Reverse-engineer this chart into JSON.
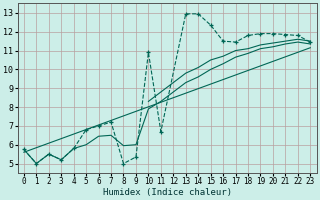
{
  "xlabel": "Humidex (Indice chaleur)",
  "bg_color": "#cceee8",
  "grid_color_major": "#b8a0a0",
  "grid_color_minor": "#d4b8b8",
  "line_color": "#006655",
  "xlim": [
    -0.5,
    23.5
  ],
  "ylim": [
    4.5,
    13.5
  ],
  "xticks": [
    0,
    1,
    2,
    3,
    4,
    5,
    6,
    7,
    8,
    9,
    10,
    11,
    12,
    13,
    14,
    15,
    16,
    17,
    18,
    19,
    20,
    21,
    22,
    23
  ],
  "yticks": [
    5,
    6,
    7,
    8,
    9,
    10,
    11,
    12,
    13
  ],
  "curve_main_x": [
    0,
    1,
    2,
    3,
    4,
    5,
    6,
    7,
    8,
    9,
    10,
    11,
    13,
    14,
    15,
    16,
    17,
    18,
    19,
    20,
    21,
    22,
    23
  ],
  "curve_main_y": [
    5.75,
    5.0,
    5.5,
    5.2,
    5.8,
    6.8,
    7.0,
    7.2,
    5.0,
    5.35,
    10.9,
    6.7,
    12.95,
    12.95,
    12.35,
    11.5,
    11.45,
    11.8,
    11.9,
    11.9,
    11.85,
    11.8,
    11.45
  ],
  "curve_upper_x": [
    10,
    11,
    13,
    14,
    15,
    16,
    17,
    18,
    19,
    20,
    21,
    22,
    23
  ],
  "curve_upper_y": [
    8.3,
    8.8,
    9.8,
    10.1,
    10.5,
    10.7,
    11.0,
    11.1,
    11.3,
    11.4,
    11.5,
    11.6,
    11.5
  ],
  "curve_lower_x": [
    0,
    1,
    2,
    3,
    4,
    5,
    6,
    7,
    8,
    9,
    10,
    11,
    13,
    14,
    15,
    16,
    17,
    18,
    19,
    20,
    21,
    22,
    23
  ],
  "curve_lower_y": [
    5.75,
    5.0,
    5.5,
    5.2,
    5.8,
    6.0,
    6.45,
    6.5,
    5.95,
    6.0,
    7.9,
    8.3,
    9.3,
    9.6,
    10.0,
    10.3,
    10.65,
    10.85,
    11.1,
    11.2,
    11.35,
    11.45,
    11.35
  ],
  "trend_x": [
    0,
    23
  ],
  "trend_y": [
    5.6,
    11.15
  ]
}
